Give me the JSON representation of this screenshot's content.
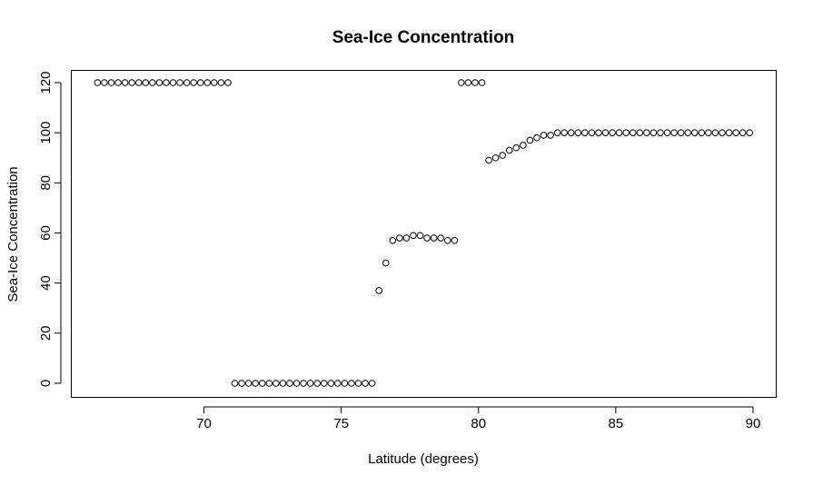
{
  "chart_data": {
    "type": "scatter",
    "title": "Sea-Ice Concentration",
    "xlabel": "Latitude (degrees)",
    "ylabel": "Sea-Ice Concentration",
    "xlim": [
      65.9,
      90.0
    ],
    "ylim": [
      -5,
      125
    ],
    "xticks": [
      70,
      75,
      80,
      85,
      90
    ],
    "yticks": [
      0,
      20,
      40,
      60,
      80,
      100,
      120
    ],
    "grid": false,
    "marker": "open-circle",
    "series": [
      {
        "x": [
          66.125,
          66.375,
          66.625,
          66.875,
          67.125,
          67.375,
          67.625,
          67.875,
          68.125,
          68.375,
          68.625,
          68.875,
          69.125,
          69.375,
          69.625,
          69.875,
          70.125,
          70.375,
          70.625,
          70.875,
          71.125,
          71.375,
          71.625,
          71.875,
          72.125,
          72.375,
          72.625,
          72.875,
          73.125,
          73.375,
          73.625,
          73.875,
          74.125,
          74.375,
          74.625,
          74.875,
          75.125,
          75.375,
          75.625,
          75.875,
          76.125,
          76.375,
          76.625,
          76.875,
          77.125,
          77.375,
          77.625,
          77.875,
          78.125,
          78.375,
          78.625,
          78.875,
          79.125,
          79.375,
          79.625,
          79.875,
          80.125,
          80.375,
          80.625,
          80.875,
          81.125,
          81.375,
          81.625,
          81.875,
          82.125,
          82.375,
          82.625,
          82.875,
          83.125,
          83.375,
          83.625,
          83.875,
          84.125,
          84.375,
          84.625,
          84.875,
          85.125,
          85.375,
          85.625,
          85.875,
          86.125,
          86.375,
          86.625,
          86.875,
          87.125,
          87.375,
          87.625,
          87.875,
          88.125,
          88.375,
          88.625,
          88.875,
          89.125,
          89.375,
          89.625,
          89.875
        ],
        "y": [
          120,
          120,
          120,
          120,
          120,
          120,
          120,
          120,
          120,
          120,
          120,
          120,
          120,
          120,
          120,
          120,
          120,
          120,
          120,
          120,
          0,
          0,
          0,
          0,
          0,
          0,
          0,
          0,
          0,
          0,
          0,
          0,
          0,
          0,
          0,
          0,
          0,
          0,
          0,
          0,
          0,
          37,
          48,
          57,
          58,
          58,
          59,
          59,
          58,
          58,
          58,
          57,
          57,
          120,
          120,
          120,
          120,
          89,
          90,
          91,
          93,
          94,
          95,
          97,
          98,
          99,
          99,
          100,
          100,
          100,
          100,
          100,
          100,
          100,
          100,
          100,
          100,
          100,
          100,
          100,
          100,
          100,
          100,
          100,
          100,
          100,
          100,
          100,
          100,
          100,
          100,
          100,
          100,
          100,
          100,
          100
        ]
      }
    ]
  }
}
